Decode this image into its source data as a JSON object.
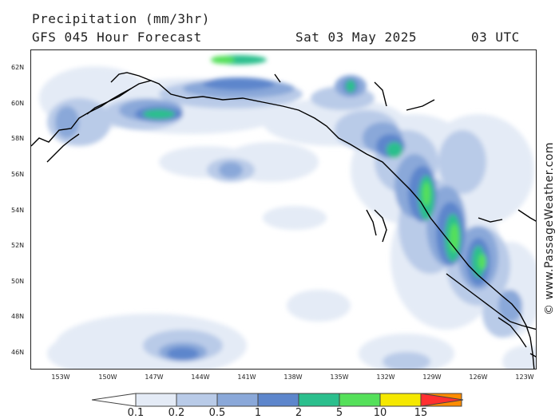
{
  "header": {
    "title": "Precipitation (mm/3hr)",
    "subtitle": "GFS 045 Hour Forecast",
    "valid_date": "Sat 03 May 2025",
    "valid_time": "03 UTC"
  },
  "credit": "© www.PassageWeather.com",
  "map": {
    "region": "Gulf of Alaska / British Columbia coast",
    "lat_labels": [
      "62N",
      "60N",
      "58N",
      "56N",
      "54N",
      "52N",
      "50N",
      "48N",
      "46N"
    ],
    "lon_labels": [
      "153W",
      "150W",
      "147W",
      "144W",
      "141W",
      "138W",
      "135W",
      "132W",
      "129W",
      "126W",
      "123W"
    ],
    "land_color": "#ffffff",
    "coastline_color": "#000000"
  },
  "legend": {
    "labels": [
      "0.1",
      "0.2",
      "0.5",
      "1",
      "2",
      "5",
      "10",
      "15"
    ],
    "colors": [
      "#ffffff",
      "#e4ebf6",
      "#b9cbe8",
      "#8aa8d9",
      "#5d86cc",
      "#2bbf8d",
      "#55e05a",
      "#f5e800",
      "#ff8c00",
      "#ff3030"
    ]
  }
}
